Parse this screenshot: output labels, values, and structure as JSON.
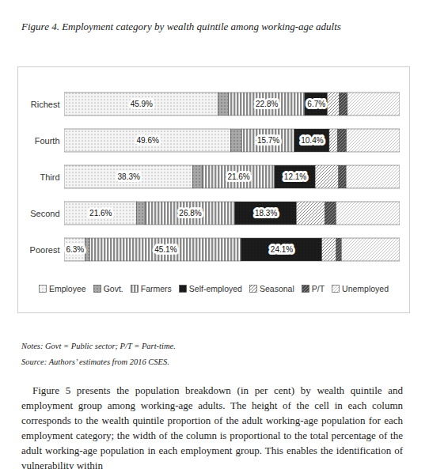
{
  "chart_data": {
    "type": "bar",
    "title": "Figure 4. Employment category by wealth quintile among working-age adults",
    "orientation": "horizontal",
    "stacked": true,
    "tick_labels": "y",
    "legend": "bottom",
    "xlim": [
      0,
      100
    ],
    "categories": [
      "Richest",
      "Fourth",
      "Third",
      "Second",
      "Poorest"
    ],
    "series": [
      {
        "name": "Employee",
        "color": "#f4f4f4",
        "data_labels": true,
        "values": [
          45.9,
          49.6,
          38.3,
          21.6,
          6.3
        ],
        "value_labels": [
          "45.9%",
          "49.6%",
          "38.3%",
          "21.6%",
          "6.3%"
        ]
      },
      {
        "name": "Govt.",
        "color": "#a8a8a8",
        "data_labels": false,
        "values": [
          3.0,
          3.3,
          2.8,
          2.5,
          1.3
        ]
      },
      {
        "name": "Farmers",
        "color": "#8a8a8a",
        "data_labels": true,
        "values": [
          22.8,
          15.7,
          21.6,
          26.8,
          45.1
        ],
        "value_labels": [
          "22.8%",
          "15.7%",
          "21.6%",
          "26.8%",
          "45.1%"
        ]
      },
      {
        "name": "Self-employed",
        "color": "#1a1a1a",
        "data_labels": true,
        "values": [
          6.7,
          10.4,
          12.1,
          18.3,
          24.1
        ],
        "value_labels": [
          "6.7%",
          "10.4%",
          "12.1%",
          "18.3%",
          "24.1%"
        ]
      },
      {
        "name": "Seasonal",
        "color": "#ffffff",
        "data_labels": false,
        "values": [
          3.6,
          2.5,
          7.0,
          8.5,
          4.3
        ]
      },
      {
        "name": "P/T",
        "color": "#4a4a4a",
        "data_labels": false,
        "values": [
          2.4,
          2.6,
          2.2,
          3.3,
          1.5
        ]
      },
      {
        "name": "Unemployed",
        "color": "#fbfbfb",
        "data_labels": false,
        "values": [
          15.6,
          15.9,
          16.0,
          19.0,
          17.4
        ]
      }
    ]
  },
  "notes": "Notes: Govt = Public sector; P/T = Part-time.",
  "source": "Source: Authors’ estimates from 2016 CSES.",
  "body": "Figure 5 presents the population breakdown (in per cent) by wealth quintile and employment group among working-age adults. The height of the cell in each column corresponds to the wealth quintile proportion of the adult working-age population for each employment category; the width of the column is proportional to the total percentage of the adult working-age population in each employment group. This enables the identification of vulnerability within"
}
